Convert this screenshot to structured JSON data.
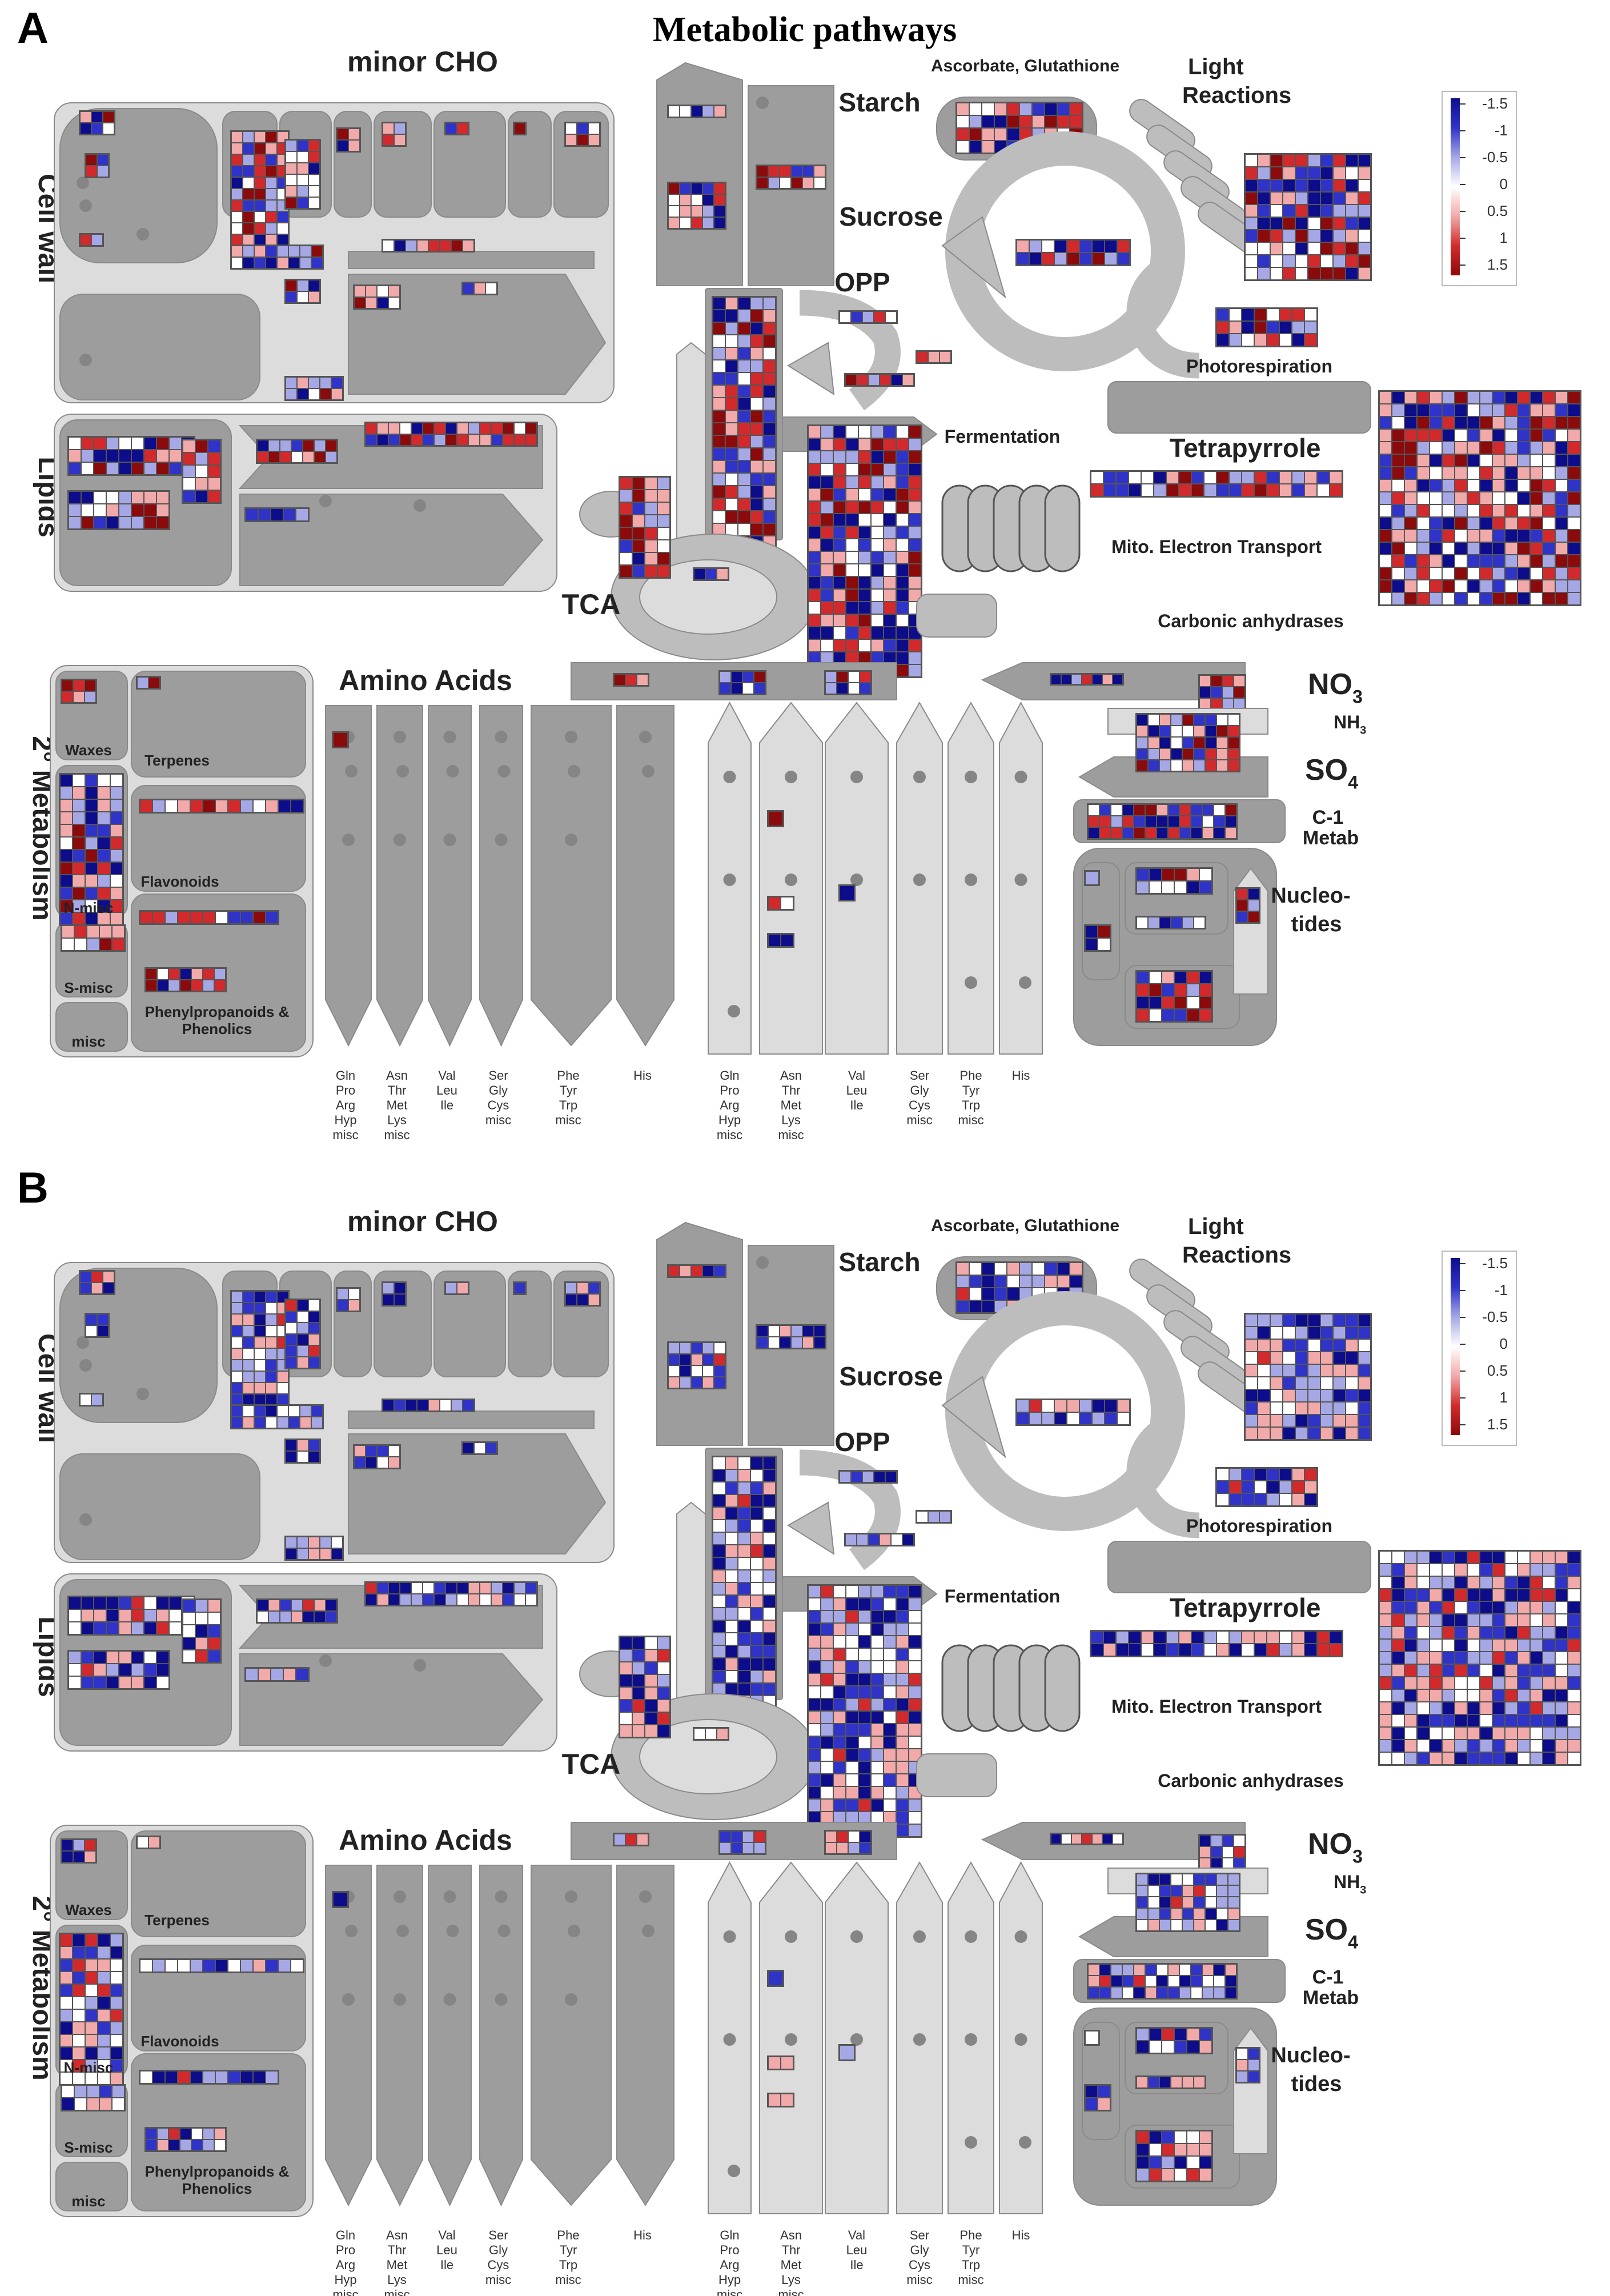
{
  "title": "Metabolic pathways",
  "legend": {
    "ticks": [
      "-1.5",
      "-1",
      "-0.5",
      "0",
      "0.5",
      "1",
      "1.5"
    ],
    "colors": [
      "#0d0d8c",
      "#2f33c8",
      "#a6a8e6",
      "#ffffff",
      "#f2a9aa",
      "#d22a2c",
      "#8b0a0c"
    ]
  },
  "palette": {
    "neg3": "#0d0d8c",
    "neg2": "#2f33c8",
    "neg1": "#a6a8e6",
    "zero": "#ffffff",
    "pos1": "#f2a9aa",
    "pos2": "#d22a2c",
    "pos3": "#8b0a0c",
    "box_dark": "#9d9d9d",
    "box_light": "#dcdcdc",
    "box_mid": "#bdbdbd"
  },
  "panels": [
    {
      "letter": "A",
      "labels": {
        "minor_cho": "minor CHO",
        "cell_wall": "Cell wall",
        "lipids": "Lipids",
        "starch": "Starch",
        "sucrose": "Sucrose",
        "opp": "OPP",
        "ascorbate": "Ascorbate, Glutathione",
        "light_reactions": [
          "Light",
          "Reactions"
        ],
        "photorespiration": "Photorespiration",
        "fermentation": "Fermentation",
        "tetrapyrrole": "Tetrapyrrole",
        "mito": "Mito. Electron Transport",
        "carbonic": "Carbonic anhydrases",
        "tca": "TCA",
        "amino_acids": "Amino Acids",
        "no3": "NO",
        "no3_sub": "3",
        "nh3": "NH",
        "nh3_sub": "3",
        "so4": "SO",
        "so4_sub": "4",
        "c1": [
          "C-1",
          "Metab"
        ],
        "nucleotides": [
          "Nucleo-",
          "tides"
        ],
        "secondary": "2° Metabolism",
        "waxes": "Waxes",
        "terpenes": "Terpenes",
        "flavonoids": "Flavonoids",
        "n_misc": "N-misc",
        "s_misc": "S-misc",
        "misc": "misc",
        "phenyl": [
          "Phenylpropanoids &",
          "Phenolics"
        ]
      },
      "aa_groups": [
        [
          "Gln",
          "Pro",
          "Arg",
          "Hyp",
          "misc"
        ],
        [
          "Asn",
          "Thr",
          "Met",
          "Lys",
          "misc"
        ],
        [
          "Val",
          "Leu",
          "Ile"
        ],
        [
          "Ser",
          "Gly",
          "Cys",
          "misc"
        ],
        [
          "Phe",
          "Tyr",
          "Trp",
          "misc"
        ],
        [
          "His"
        ]
      ]
    },
    {
      "letter": "B",
      "labels": {
        "minor_cho": "minor CHO",
        "cell_wall": "Cell wall",
        "lipids": "Lipids",
        "starch": "Starch",
        "sucrose": "Sucrose",
        "opp": "OPP",
        "ascorbate": "Ascorbate, Glutathione",
        "light_reactions": [
          "Light",
          "Reactions"
        ],
        "photorespiration": "Photorespiration",
        "fermentation": "Fermentation",
        "tetrapyrrole": "Tetrapyrrole",
        "mito": "Mito. Electron Transport",
        "carbonic": "Carbonic anhydrases",
        "tca": "TCA",
        "amino_acids": "Amino Acids",
        "no3": "NO",
        "no3_sub": "3",
        "nh3": "NH",
        "nh3_sub": "3",
        "so4": "SO",
        "so4_sub": "4",
        "c1": [
          "C-1",
          "Metab"
        ],
        "nucleotides": [
          "Nucleo-",
          "tides"
        ],
        "secondary": "2° Metabolism",
        "waxes": "Waxes",
        "terpenes": "Terpenes",
        "flavonoids": "Flavonoids",
        "n_misc": "N-misc",
        "s_misc": "S-misc",
        "misc": "misc",
        "phenyl": [
          "Phenylpropanoids &",
          "Phenolics"
        ]
      },
      "aa_groups": [
        [
          "Gln",
          "Pro",
          "Arg",
          "Hyp",
          "misc"
        ],
        [
          "Asn",
          "Thr",
          "Met",
          "Lys",
          "misc"
        ],
        [
          "Val",
          "Leu",
          "Ile"
        ],
        [
          "Ser",
          "Gly",
          "Cys",
          "misc"
        ],
        [
          "Phe",
          "Tyr",
          "Trp",
          "misc"
        ],
        [
          "His"
        ]
      ]
    }
  ]
}
